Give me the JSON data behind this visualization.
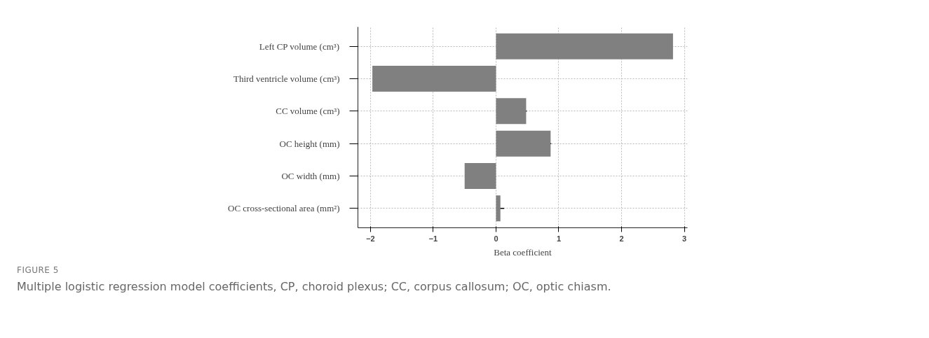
{
  "chart_data": {
    "type": "bar",
    "orientation": "horizontal",
    "categories": [
      "Left CP volume (cm³)",
      "Third ventricle volume (cm³)",
      "CC volume (cm³)",
      "OC height (mm)",
      "OC width (mm)",
      "OC cross-sectional area (mm²)"
    ],
    "values": [
      2.82,
      -1.97,
      0.48,
      0.87,
      -0.5,
      0.07
    ],
    "errors": [
      null,
      null,
      0.01,
      0.01,
      null,
      0.06
    ],
    "color": "#808080",
    "xlim": [
      -2.2,
      3.05
    ],
    "xticks": [
      {
        "value": -2,
        "label": "−2"
      },
      {
        "value": -1,
        "label": "−1"
      },
      0,
      1,
      2,
      3
    ],
    "xlabel": "Beta coefficient",
    "grid": true,
    "annotations": [
      "FIGURE 5",
      "Multiple logistic regression model coefficients, CP, choroid plexus; CC, corpus callosum; OC, optic chiasm."
    ]
  }
}
